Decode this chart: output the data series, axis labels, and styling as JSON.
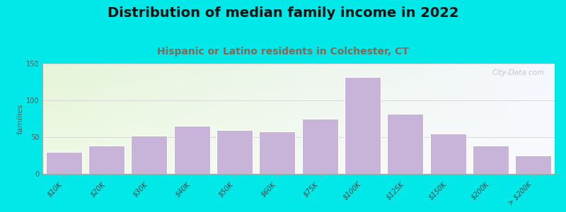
{
  "title": "Distribution of median family income in 2022",
  "subtitle": "Hispanic or Latino residents in Colchester, CT",
  "title_color": "#111111",
  "subtitle_color": "#886655",
  "watermark": "City-Data.com",
  "ylabel": "families",
  "background_outer": "#00e8e8",
  "bar_color": "#c8b4d8",
  "bar_edge_color": "#ffffff",
  "ylim": [
    0,
    150
  ],
  "yticks": [
    0,
    50,
    100,
    150
  ],
  "categories": [
    "$10K",
    "$20K",
    "$30K",
    "$40K",
    "$50K",
    "$60K",
    "$75K",
    "$100K",
    "$125K",
    "$150K",
    "$200K",
    "> $200K"
  ],
  "values": [
    30,
    38,
    52,
    65,
    60,
    58,
    75,
    132,
    82,
    55,
    38,
    25
  ],
  "bg_topleft": [
    0.9,
    0.96,
    0.85
  ],
  "bg_topright": [
    0.96,
    0.97,
    1.0
  ],
  "bg_botleft": [
    0.94,
    0.98,
    0.9
  ],
  "bg_botright": [
    0.98,
    0.98,
    1.0
  ],
  "title_fontsize": 14,
  "subtitle_fontsize": 10,
  "ylabel_fontsize": 8,
  "tick_fontsize": 7
}
